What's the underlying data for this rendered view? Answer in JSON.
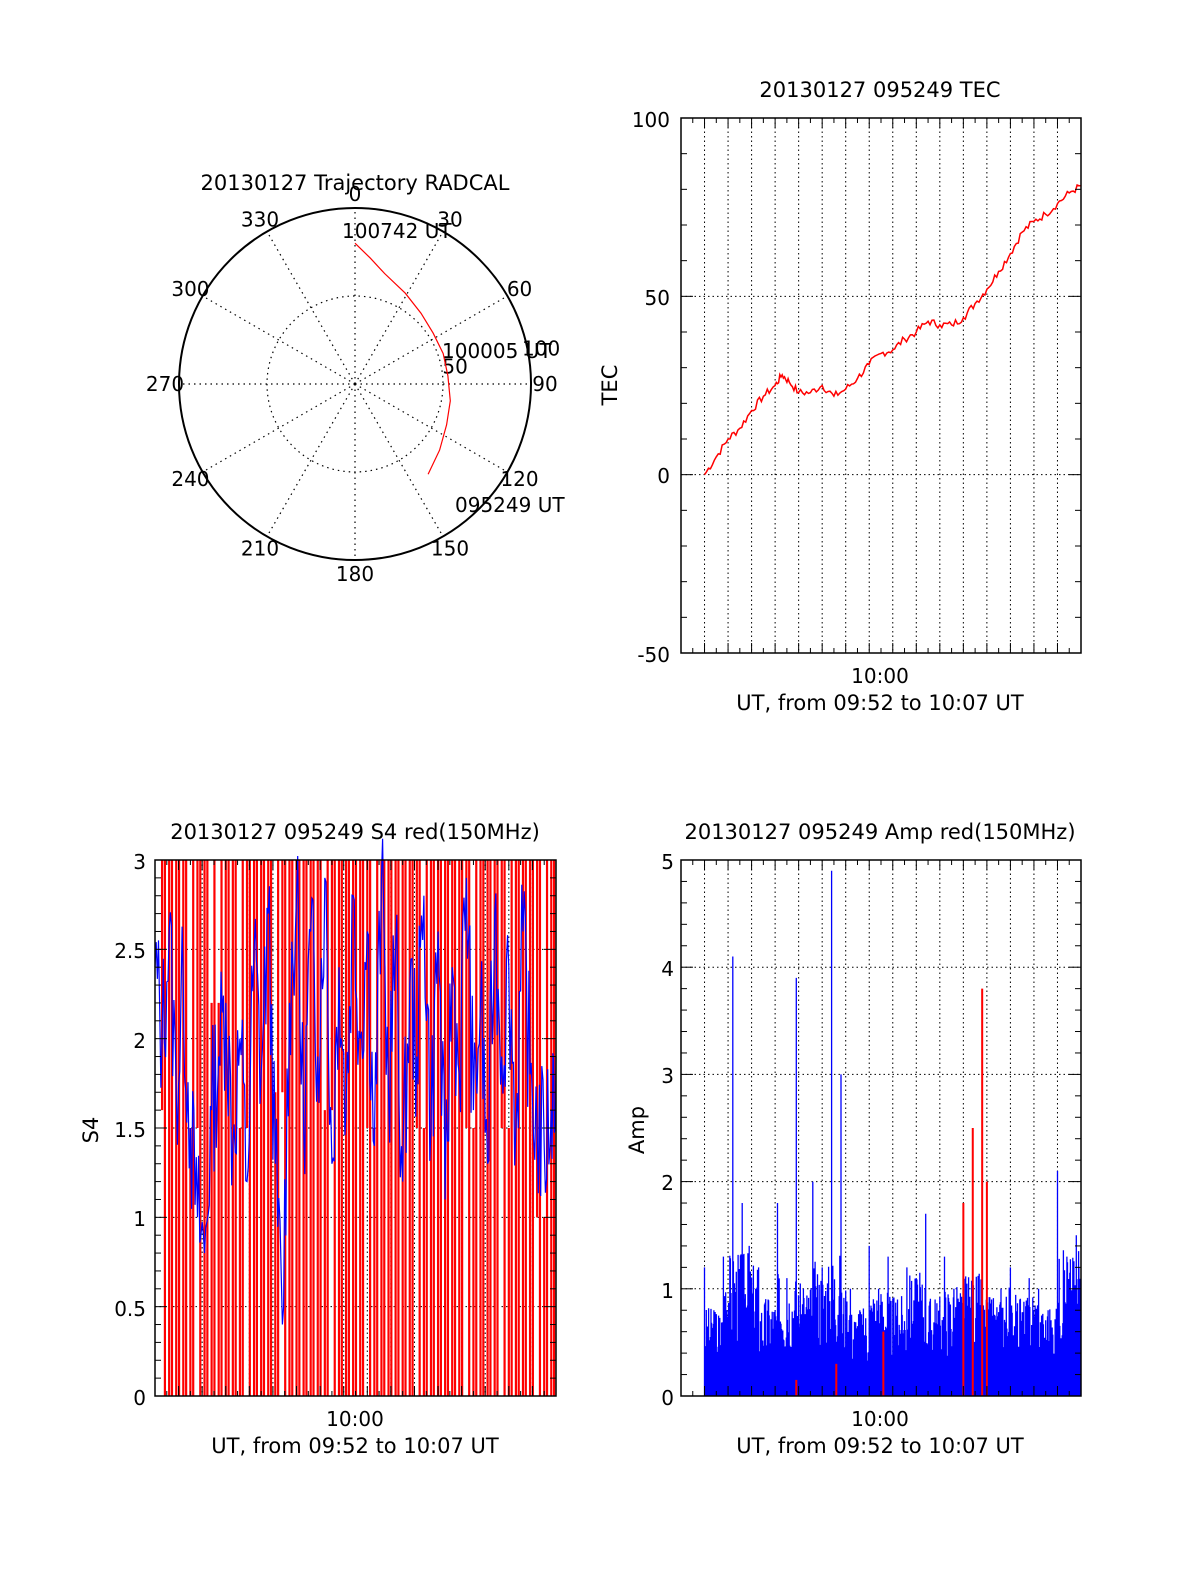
{
  "colors": {
    "primary_series": "#ff0000",
    "secondary_series": "#0000ff",
    "axes": "#000000",
    "grid": "#000000"
  },
  "chart_data": [
    {
      "type": "polar",
      "title": "20130127 Trajectory RADCAL",
      "azimuth_labels": [
        "0",
        "30",
        "60",
        "90",
        "120",
        "150",
        "180",
        "210",
        "240",
        "270",
        "300",
        "330"
      ],
      "radial_labels": [
        "50",
        "100"
      ],
      "rlim": [
        0,
        100
      ],
      "track": {
        "start_label": "095249 UT",
        "mid_label": "100005 UT",
        "end_label": "100742 UT",
        "azimuth_deg": [
          141,
          128,
          114,
          100,
          85,
          71,
          57,
          43,
          29,
          15,
          7,
          0
        ],
        "zenith": [
          66,
          61,
          57,
          55,
          53,
          53,
          53,
          55,
          59,
          65,
          72,
          80
        ]
      },
      "grid": true
    },
    {
      "type": "line",
      "title": "20130127 095249 TEC",
      "xlabel": "UT, from 09:52 to 10:07 UT",
      "ylabel": "TEC",
      "x_tick_labels": [
        "10:00"
      ],
      "y_tick_labels": [
        "-50",
        "0",
        "50",
        "100"
      ],
      "ylim": [
        -50,
        100
      ],
      "xlim_minutes_after_0950": [
        0,
        17
      ],
      "grid": true,
      "series": [
        {
          "color": "red",
          "x_minutes_after_0950": [
            1.0,
            1.5,
            2.0,
            2.5,
            3.0,
            3.5,
            4.0,
            4.3,
            4.6,
            5.0,
            5.5,
            6.0,
            6.5,
            7.0,
            7.5,
            8.0,
            8.5,
            9.0,
            9.5,
            10.0,
            10.5,
            11.0,
            11.5,
            12.0,
            12.5,
            13.0,
            13.5,
            14.0,
            14.5,
            15.0,
            15.5,
            16.0,
            16.5,
            17.0
          ],
          "y": [
            0,
            5,
            10,
            13,
            18,
            22,
            25,
            28,
            26,
            23,
            23,
            25,
            22,
            24,
            27,
            31,
            34,
            35,
            38,
            40,
            43,
            42,
            42,
            44,
            48,
            52,
            57,
            62,
            68,
            71,
            73,
            76,
            79,
            81
          ]
        }
      ]
    },
    {
      "type": "line",
      "title": "20130127 095249 S4 red(150MHz)",
      "xlabel": "UT, from 09:52 to 10:07 UT",
      "ylabel": "S4",
      "x_tick_labels": [
        "10:00"
      ],
      "y_tick_labels": [
        "0",
        "0.5",
        "1",
        "1.5",
        "2",
        "2.5",
        "3"
      ],
      "ylim": [
        0,
        3
      ],
      "xlim_minutes_after_0950": [
        0,
        17
      ],
      "grid": true,
      "series": [
        {
          "color": "blue",
          "x_minutes_after_0950": [
            0.0,
            0.3,
            0.6,
            0.9,
            1.2,
            1.5,
            1.8,
            2.1,
            2.4,
            2.7,
            3.0,
            3.3,
            3.6,
            3.9,
            4.2,
            4.5,
            4.8,
            5.1,
            5.4,
            5.7,
            6.0,
            6.3,
            6.6,
            6.9,
            7.2,
            7.5,
            7.8,
            8.1,
            8.4,
            8.7,
            9.0,
            9.3,
            9.6,
            9.9,
            10.2,
            10.5,
            10.8,
            11.1,
            11.4,
            11.7,
            12.0,
            12.3,
            12.6,
            12.9,
            13.2,
            13.5,
            13.8,
            14.1,
            14.4,
            14.7,
            15.0,
            15.3,
            15.6,
            15.9,
            16.2,
            16.5,
            16.8,
            17.0
          ],
          "y": [
            2.4,
            2.0,
            2.6,
            1.7,
            2.3,
            1.5,
            1.0,
            0.8,
            1.6,
            1.9,
            2.2,
            1.4,
            2.0,
            1.2,
            2.5,
            1.8,
            2.7,
            1.3,
            0.4,
            2.2,
            2.8,
            1.5,
            2.6,
            1.9,
            2.9,
            1.3,
            2.4,
            1.6,
            2.8,
            2.0,
            2.6,
            1.4,
            2.9,
            1.7,
            2.5,
            1.2,
            2.3,
            1.9,
            2.8,
            1.5,
            2.6,
            1.1,
            2.4,
            1.8,
            2.9,
            1.6,
            2.2,
            1.3,
            2.7,
            1.9,
            2.4,
            1.5,
            2.6,
            1.8,
            1.5,
            1.4,
            1.6,
            1.9
          ]
        },
        {
          "color": "red",
          "x_minutes_after_0950": [
            0.1,
            0.3,
            0.6,
            0.9,
            1.2,
            1.5,
            1.8,
            2.1,
            2.4,
            2.7,
            3.0,
            3.3,
            3.6,
            3.9,
            4.2,
            4.5,
            4.8,
            5.1,
            5.4,
            5.7,
            6.0,
            6.3,
            6.6,
            6.9,
            7.2,
            7.5,
            7.8,
            8.1,
            8.4,
            8.7,
            9.0,
            9.3,
            9.6,
            9.9,
            10.2,
            10.5,
            10.8,
            11.1,
            11.4,
            11.7,
            12.0,
            12.3,
            12.6,
            12.9,
            13.2,
            13.5,
            13.8,
            14.1,
            14.4,
            14.7,
            15.0,
            15.3,
            15.6,
            15.9,
            16.2,
            16.5,
            16.8
          ],
          "y": [
            1.6,
            3,
            0,
            3,
            0,
            1.5,
            3,
            0,
            2.2,
            0,
            3,
            0,
            1.5,
            3,
            0,
            3,
            0,
            1.7,
            3,
            0,
            3,
            0,
            3,
            0,
            1.6,
            3,
            0,
            3,
            0,
            3,
            1.5,
            0,
            3,
            0,
            3,
            0,
            3,
            1.5,
            0,
            3,
            0,
            3,
            0,
            3,
            1.5,
            0,
            3,
            0,
            3,
            1.5,
            0,
            3,
            0,
            3,
            1.0,
            0,
            3
          ]
        }
      ]
    },
    {
      "type": "line",
      "title": "20130127 095249 Amp red(150MHz)",
      "xlabel": "UT, from 09:52 to 10:07 UT",
      "ylabel": "Amp",
      "x_tick_labels": [
        "10:00"
      ],
      "y_tick_labels": [
        "0",
        "1",
        "2",
        "3",
        "4",
        "5"
      ],
      "ylim": [
        0,
        5
      ],
      "xlim_minutes_after_0950": [
        0,
        17
      ],
      "grid": true,
      "series": [
        {
          "color": "blue",
          "x_minutes_after_0950": [
            1.0,
            1.4,
            1.8,
            2.2,
            2.6,
            2.9,
            3.3,
            3.7,
            4.1,
            4.5,
            4.9,
            5.2,
            5.6,
            6.0,
            6.4,
            6.8,
            7.2,
            7.6,
            8.0,
            8.4,
            8.8,
            9.2,
            9.6,
            10.0,
            10.4,
            10.8,
            11.2,
            11.6,
            12.0,
            12.4,
            12.8,
            13.2,
            13.6,
            14.0,
            14.4,
            14.8,
            15.2,
            15.6,
            16.0,
            16.4,
            16.8,
            17.0
          ],
          "y": [
            1.2,
            0.8,
            1.3,
            4.1,
            1.8,
            1.4,
            1.2,
            0.9,
            1.8,
            1.1,
            3.9,
            1.0,
            2.0,
            1.2,
            4.9,
            3.0,
            1.0,
            0.8,
            1.4,
            1.0,
            1.3,
            0.9,
            1.2,
            1.1,
            1.7,
            0.9,
            1.3,
            1.0,
            1.2,
            1.1,
            1.6,
            0.9,
            1.0,
            1.2,
            0.9,
            1.1,
            1.0,
            0.8,
            2.1,
            1.3,
            1.5,
            1.6
          ]
        },
        {
          "color": "red",
          "x_minutes_after_0950": [
            4.9,
            6.6,
            8.6,
            12.0,
            12.4,
            12.8,
            13.0
          ],
          "y": [
            0.15,
            0.3,
            0.6,
            1.8,
            2.5,
            3.8,
            2.0
          ]
        }
      ]
    }
  ]
}
